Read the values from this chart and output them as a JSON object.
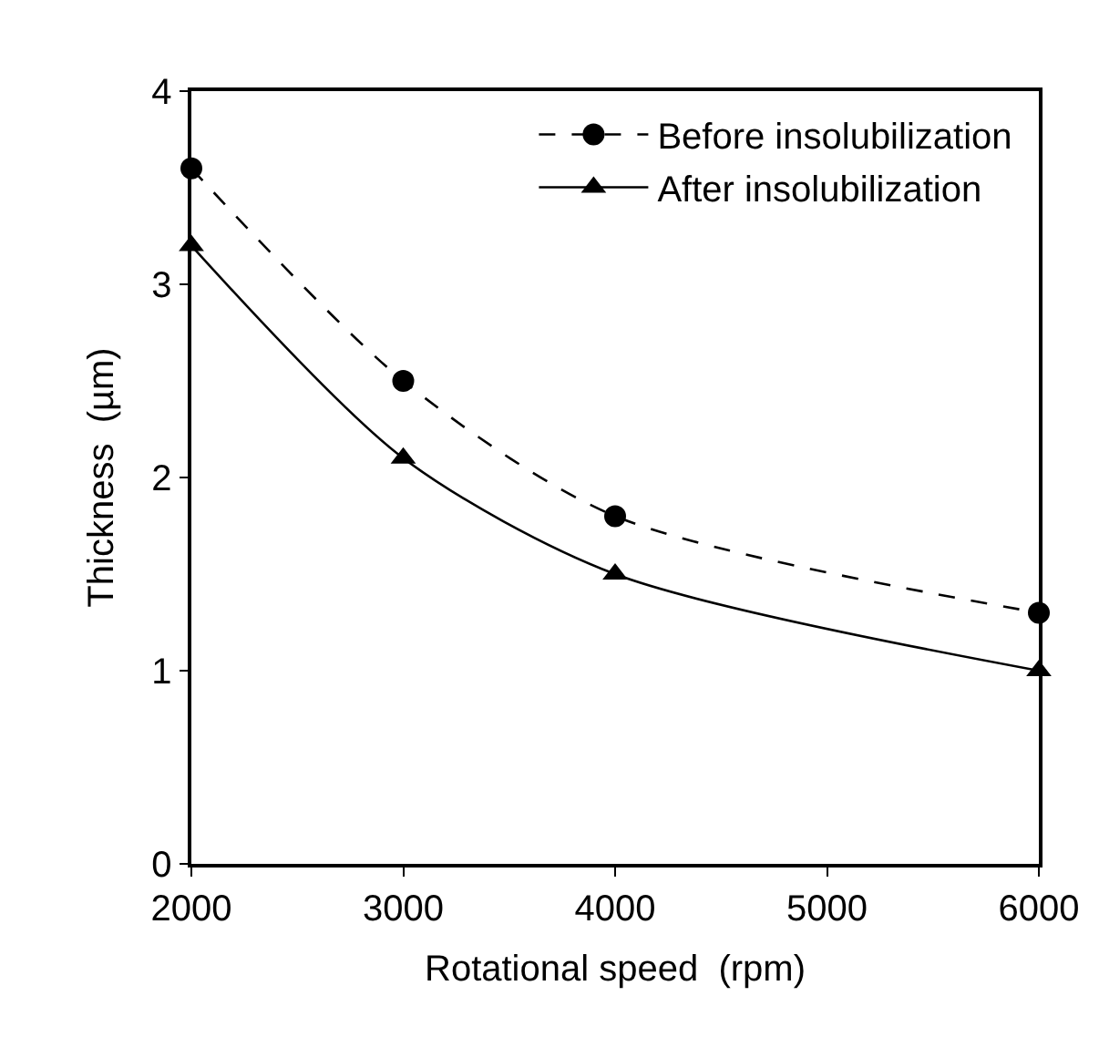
{
  "chart_data": {
    "type": "line",
    "xlabel": "Rotational speed  (rpm)",
    "ylabel": "Thickness  (µm)",
    "x": [
      2000,
      3000,
      4000,
      6000
    ],
    "series": [
      {
        "name": "Before insolubilization",
        "color": "#000000",
        "values": [
          3.6,
          2.5,
          1.8,
          1.3
        ],
        "marker": "circle",
        "line_style": "dashed"
      },
      {
        "name": "After insolubilization",
        "color": "#000000",
        "values": [
          3.2,
          2.1,
          1.5,
          1.0
        ],
        "marker": "triangle",
        "line_style": "solid"
      }
    ],
    "xlim": [
      2000,
      6000
    ],
    "xticks": [
      2000,
      3000,
      4000,
      5000,
      6000
    ],
    "ylim": [
      0,
      4
    ],
    "yticks": [
      0,
      1,
      2,
      3,
      4
    ],
    "legend": "top right"
  }
}
